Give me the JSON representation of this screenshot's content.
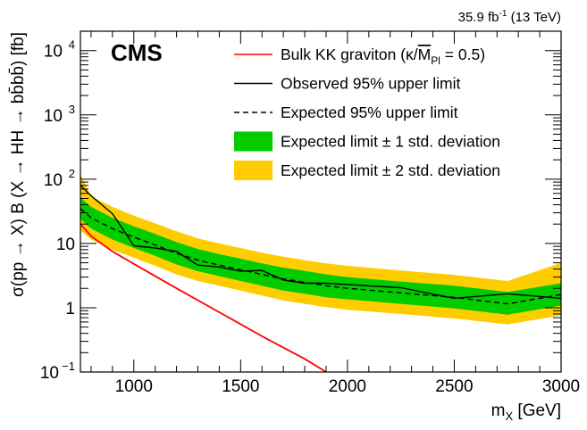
{
  "chart_data": {
    "type": "line",
    "lumi_label": "35.9 fb",
    "lumi_exponent": "-1",
    "lumi_energy": " (13 TeV)",
    "experiment_label": "CMS",
    "xlabel": "m",
    "xlabel_sub": "X",
    "xlabel_unit": " [GeV]",
    "ylabel": "σ(pp → X) B (X → HH → bb̄bb̄) [fb]",
    "xlim": [
      750,
      3000
    ],
    "ylim": [
      0.1,
      20000
    ],
    "yscale": "log",
    "x_ticks": [
      1000,
      1500,
      2000,
      2500,
      3000
    ],
    "x_tick_labels": [
      "1000",
      "1500",
      "2000",
      "2500",
      "3000"
    ],
    "y_ticks": [
      0.1,
      1,
      10,
      100,
      1000,
      10000
    ],
    "y_tick_labels": [
      {
        "base": "10",
        "exp": "−1"
      },
      {
        "base": "1",
        "exp": ""
      },
      {
        "base": "10",
        "exp": ""
      },
      {
        "base": "10",
        "exp": "2"
      },
      {
        "base": "10",
        "exp": "3"
      },
      {
        "base": "10",
        "exp": "4"
      }
    ],
    "legend_position": "top-right",
    "legend": [
      {
        "label_main": "Bulk KK graviton (κ/",
        "label_over": "M",
        "label_sub": "Pl",
        "label_tail": " = 0.5)",
        "style": "solid",
        "color": "#ff0000"
      },
      {
        "label": "Observed 95% upper limit",
        "style": "solid",
        "color": "#000000"
      },
      {
        "label": "Expected 95% upper limit",
        "style": "dashed",
        "color": "#000000"
      },
      {
        "label": "Expected limit ± 1 std. deviation",
        "style": "band",
        "color": "#00cc00"
      },
      {
        "label": "Expected limit ± 2 std. deviation",
        "style": "band",
        "color": "#ffcc00"
      }
    ],
    "series": [
      {
        "name": "Bulk KK graviton (κ/MPl = 0.5)",
        "color": "#ff0000",
        "x": [
          750,
          800,
          900,
          1000,
          1200,
          1400,
          1600,
          1800,
          1900
        ],
        "y": [
          20,
          13,
          7.5,
          4.8,
          2.0,
          0.85,
          0.36,
          0.16,
          0.1
        ]
      },
      {
        "name": "Observed 95% upper limit",
        "color": "#000000",
        "x": [
          750,
          800,
          900,
          1000,
          1100,
          1200,
          1300,
          1400,
          1500,
          1600,
          1700,
          1800,
          1900,
          2000,
          2250,
          2500,
          2750,
          3000
        ],
        "y": [
          80,
          55,
          29,
          9.2,
          8.5,
          7.5,
          4.6,
          4.3,
          3.7,
          3.8,
          2.7,
          2.4,
          2.4,
          2.3,
          2.05,
          1.4,
          1.65,
          1.4
        ]
      },
      {
        "name": "Expected 95% upper limit",
        "color": "#000000",
        "x": [
          750,
          800,
          900,
          1000,
          1100,
          1200,
          1300,
          1400,
          1500,
          1600,
          1700,
          1800,
          1900,
          2000,
          2250,
          2500,
          2750,
          3000
        ],
        "y": [
          35,
          25,
          17,
          12.5,
          9.5,
          7.0,
          5.5,
          4.6,
          3.9,
          3.3,
          2.8,
          2.5,
          2.2,
          2.0,
          1.7,
          1.45,
          1.15,
          1.6
        ]
      }
    ],
    "bands": {
      "x": [
        750,
        800,
        900,
        1000,
        1100,
        1200,
        1300,
        1400,
        1500,
        1600,
        1700,
        1800,
        1900,
        2000,
        2250,
        2500,
        2750,
        3000
      ],
      "one_sigma_low": [
        24,
        17,
        11.5,
        8.5,
        6.4,
        4.7,
        3.7,
        3.1,
        2.6,
        2.2,
        1.85,
        1.65,
        1.45,
        1.35,
        1.15,
        0.98,
        0.78,
        1.08
      ],
      "one_sigma_high": [
        52,
        37,
        25,
        18.5,
        14,
        10.5,
        8.2,
        6.8,
        5.8,
        4.9,
        4.2,
        3.75,
        3.3,
        3.0,
        2.55,
        2.2,
        1.75,
        2.4
      ],
      "two_sigma_low": [
        16,
        11.5,
        8,
        6,
        4.5,
        3.3,
        2.6,
        2.2,
        1.85,
        1.55,
        1.3,
        1.15,
        1.02,
        0.93,
        0.8,
        0.68,
        0.55,
        0.76
      ],
      "two_sigma_high": [
        120,
        54,
        37,
        27,
        20.5,
        15.5,
        12,
        10,
        8.5,
        7.2,
        6.2,
        5.5,
        4.9,
        4.5,
        3.8,
        3.25,
        2.6,
        5.0
      ],
      "one_sigma_color": "#00cc00",
      "two_sigma_color": "#ffcc00"
    }
  }
}
